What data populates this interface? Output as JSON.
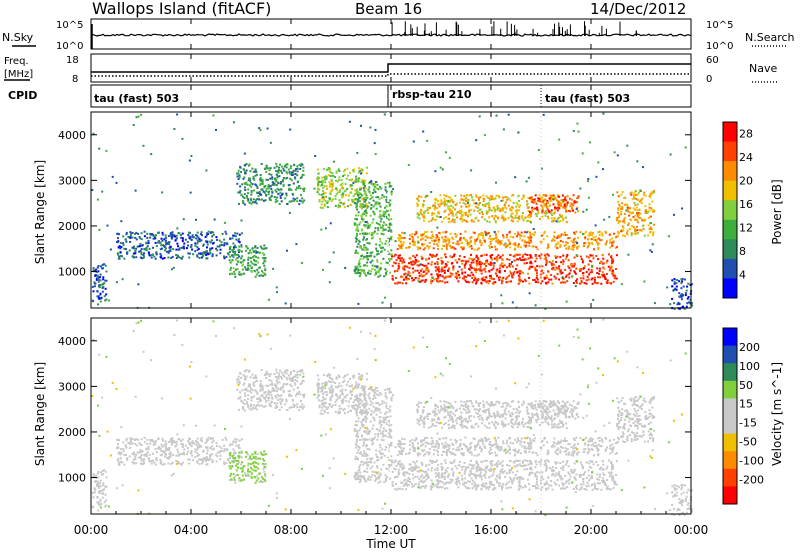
{
  "header": {
    "station": "Wallops Island (fitACF)",
    "beam": "Beam 16",
    "date": "14/Dec/2012"
  },
  "nsky_panel": {
    "left_label": "N.Sky",
    "right_label": "N.Search",
    "tick_top": "10^5",
    "tick_bottom": "10^0"
  },
  "freq_panel": {
    "left_label_line1": "Freq.",
    "left_label_line2": "[MHz]",
    "left_ticks": [
      "18",
      "8"
    ],
    "right_label": "Nave",
    "right_ticks": [
      "60",
      "0"
    ]
  },
  "cpid_panel": {
    "label": "CPID",
    "segments": [
      {
        "label": "tau (fast) 503",
        "start_hour": 0
      },
      {
        "label": "rbsp-tau 210",
        "start_hour": 12
      },
      {
        "label": "tau (fast) 503",
        "start_hour": 18
      }
    ]
  },
  "colors": {
    "power_scale": [
      "#0000ff",
      "#1f4fb0",
      "#2e8a57",
      "#3caf3c",
      "#7fd03c",
      "#f0c000",
      "#ff8c00",
      "#ff4000",
      "#ff0000"
    ],
    "velocity_scale": [
      "#0000ff",
      "#1f4fb0",
      "#2e8a57",
      "#7fd03c",
      "#c8c8c8",
      "#c8c8c8",
      "#f0c000",
      "#ff8c00",
      "#ff4000",
      "#ff0000"
    ],
    "ground_scatter": "#c8c8c8"
  },
  "chart_data": [
    {
      "type": "heatmap",
      "ylabel": "Slant Range [km]",
      "yticks": [
        "1000",
        "2000",
        "3000",
        "4000"
      ],
      "ylim": [
        200,
        4500
      ],
      "xlim_hours": [
        0,
        24
      ],
      "colorbar": {
        "label": "Power [dB]",
        "ticks": [
          "4",
          "8",
          "12",
          "16",
          "20",
          "24",
          "28"
        ],
        "range": [
          0,
          30
        ]
      },
      "scatter_regions": [
        {
          "hour_start": 0.0,
          "hour_end": 0.6,
          "range_low": 300,
          "range_high": 1200,
          "value": 5
        },
        {
          "hour_start": 1.0,
          "hour_end": 6.0,
          "range_low": 1300,
          "range_high": 1900,
          "value": 6
        },
        {
          "hour_start": 5.5,
          "hour_end": 7.0,
          "range_low": 900,
          "range_high": 1600,
          "value": 11
        },
        {
          "hour_start": 5.8,
          "hour_end": 8.5,
          "range_low": 2500,
          "range_high": 3400,
          "value": 9
        },
        {
          "hour_start": 9.0,
          "hour_end": 11.0,
          "range_low": 2400,
          "range_high": 3300,
          "value": 15
        },
        {
          "hour_start": 10.5,
          "hour_end": 12.0,
          "range_low": 900,
          "range_high": 3000,
          "value": 12
        },
        {
          "hour_start": 12.0,
          "hour_end": 21.0,
          "range_low": 750,
          "range_high": 1400,
          "value": 26
        },
        {
          "hour_start": 12.2,
          "hour_end": 21.0,
          "range_low": 1500,
          "range_high": 1900,
          "value": 21
        },
        {
          "hour_start": 13.0,
          "hour_end": 19.0,
          "range_low": 2100,
          "range_high": 2700,
          "value": 19
        },
        {
          "hour_start": 17.5,
          "hour_end": 19.5,
          "range_low": 2300,
          "range_high": 2700,
          "value": 25
        },
        {
          "hour_start": 21.0,
          "hour_end": 22.5,
          "range_low": 1800,
          "range_high": 2800,
          "value": 20
        },
        {
          "hour_start": 23.2,
          "hour_end": 24.0,
          "range_low": 200,
          "range_high": 900,
          "value": 5
        }
      ]
    },
    {
      "type": "heatmap",
      "ylabel": "Slant Range [km]",
      "yticks": [
        "1000",
        "2000",
        "3000",
        "4000"
      ],
      "ylim": [
        200,
        4500
      ],
      "xlim_hours": [
        0,
        24
      ],
      "colorbar": {
        "label": "Velocity [m s^-1]",
        "ticks": [
          "200",
          "100",
          "50",
          "15",
          "-15",
          "-50",
          "-100",
          "-200"
        ],
        "range": [
          -250,
          250
        ]
      },
      "scatter_regions": [
        {
          "hour_start": 0.0,
          "hour_end": 0.6,
          "range_low": 300,
          "range_high": 1200,
          "value": 0
        },
        {
          "hour_start": 1.0,
          "hour_end": 6.0,
          "range_low": 1300,
          "range_high": 1900,
          "value": 20
        },
        {
          "hour_start": 5.5,
          "hour_end": 7.0,
          "range_low": 900,
          "range_high": 1600,
          "value": 60
        },
        {
          "hour_start": 5.8,
          "hour_end": 8.5,
          "range_low": 2500,
          "range_high": 3400,
          "value": 0
        },
        {
          "hour_start": 9.0,
          "hour_end": 11.0,
          "range_low": 2400,
          "range_high": 3300,
          "value": 0
        },
        {
          "hour_start": 10.5,
          "hour_end": 12.0,
          "range_low": 900,
          "range_high": 3000,
          "value": 30
        },
        {
          "hour_start": 12.0,
          "hour_end": 21.0,
          "range_low": 750,
          "range_high": 1400,
          "value": 0
        },
        {
          "hour_start": 12.2,
          "hour_end": 21.0,
          "range_low": 1500,
          "range_high": 1900,
          "value": 0
        },
        {
          "hour_start": 13.0,
          "hour_end": 19.0,
          "range_low": 2100,
          "range_high": 2700,
          "value": 0
        },
        {
          "hour_start": 17.5,
          "hour_end": 19.5,
          "range_low": 2300,
          "range_high": 2700,
          "value": 0
        },
        {
          "hour_start": 21.0,
          "hour_end": 22.5,
          "range_low": 1800,
          "range_high": 2800,
          "value": -20
        },
        {
          "hour_start": 23.2,
          "hour_end": 24.0,
          "range_low": 200,
          "range_high": 900,
          "value": 0
        }
      ]
    }
  ],
  "x_axis": {
    "label": "Time UT",
    "ticks": [
      "00:00",
      "04:00",
      "08:00",
      "12:00",
      "16:00",
      "20:00",
      "00:00"
    ]
  }
}
